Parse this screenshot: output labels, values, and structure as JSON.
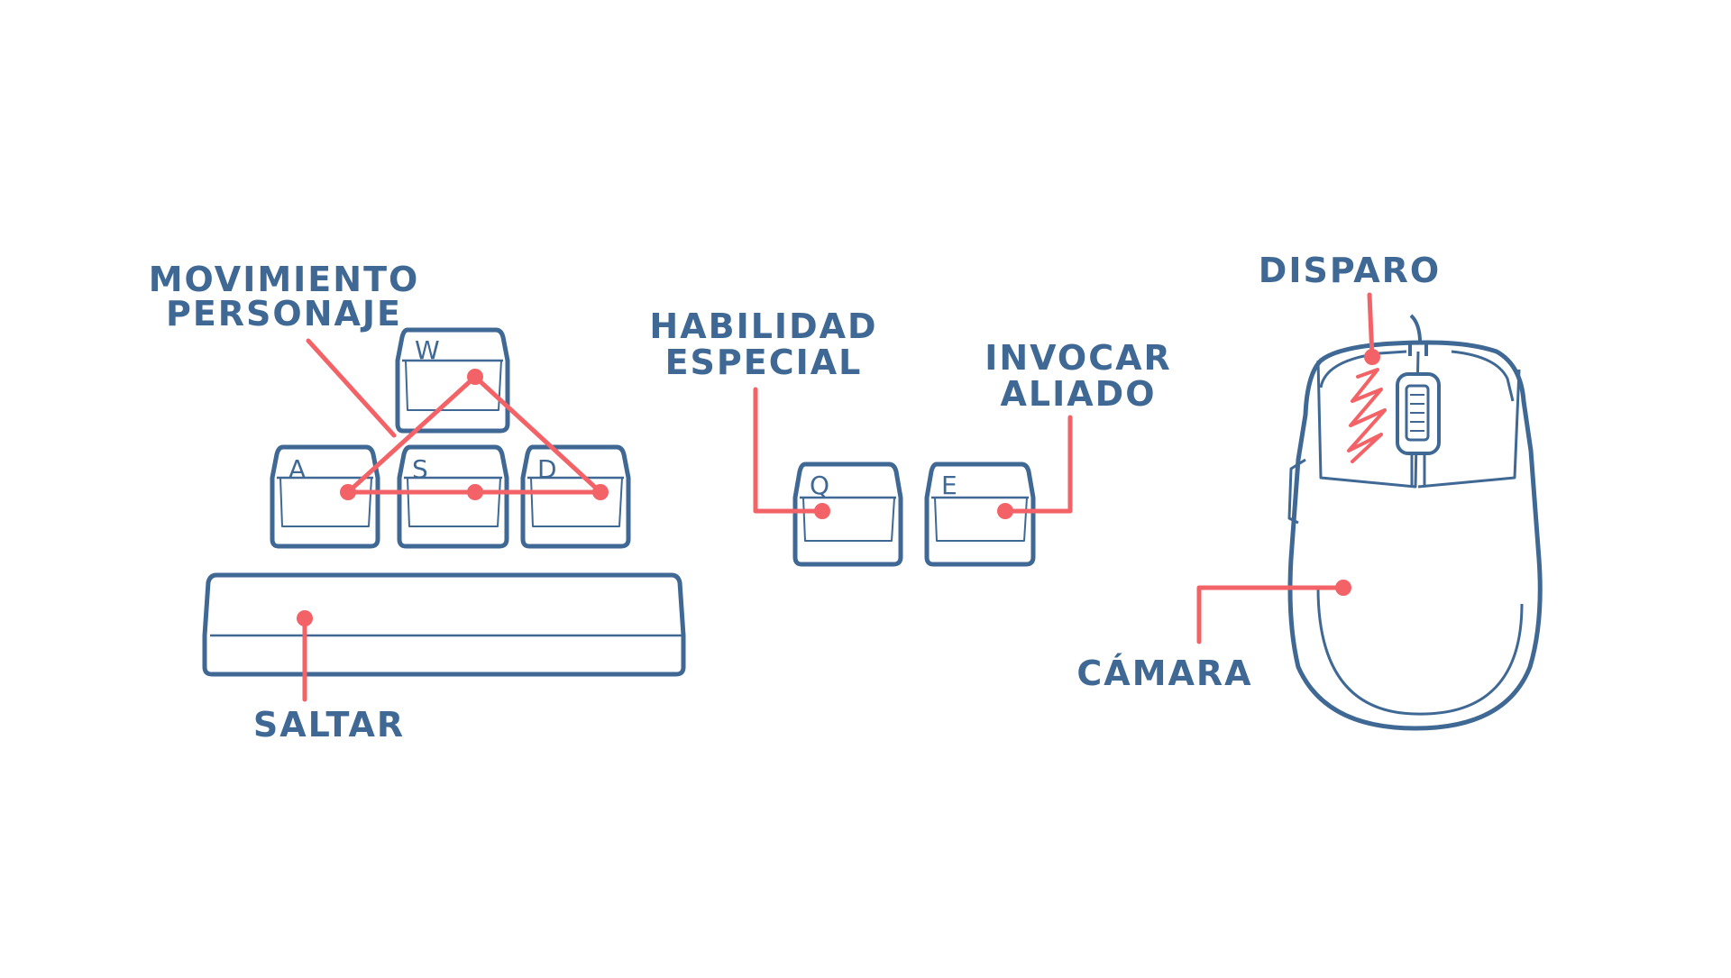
{
  "colors": {
    "outline": "#3f6994",
    "accent": "#f26266",
    "background": "#ffffff"
  },
  "keys": {
    "w": "W",
    "a": "A",
    "s": "S",
    "d": "D",
    "q": "Q",
    "e": "E"
  },
  "labels": {
    "movement_line1": "MOVIMIENTO",
    "movement_line2": "PERSONAJE",
    "jump": "SALTAR",
    "special_line1": "HABILIDAD",
    "special_line2": "ESPECIAL",
    "summon_line1": "INVOCAR",
    "summon_line2": "ALIADO",
    "fire": "DISPARO",
    "camera": "CÁMARA"
  }
}
